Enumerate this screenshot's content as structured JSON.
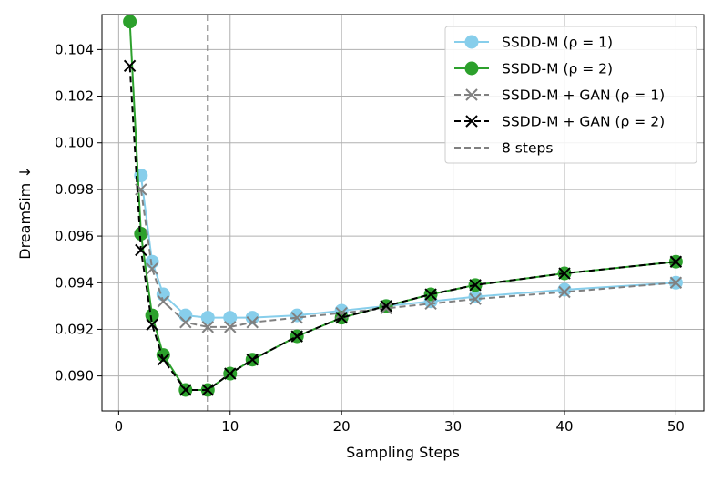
{
  "chart_data": {
    "type": "line",
    "title": "",
    "xlabel": "Sampling Steps",
    "ylabel": "DreamSim ↓",
    "xlim": [
      -1.5,
      52.5
    ],
    "ylim": [
      0.0885,
      0.1055
    ],
    "xticks": [
      0,
      10,
      20,
      30,
      40,
      50
    ],
    "yticks": [
      0.09,
      0.092,
      0.094,
      0.096,
      0.098,
      0.1,
      0.102,
      0.104
    ],
    "ytick_labels": [
      "0.090",
      "0.092",
      "0.094",
      "0.096",
      "0.098",
      "0.100",
      "0.102",
      "0.104"
    ],
    "grid": true,
    "legend_position": "top-right",
    "vertical_line": {
      "x": 8,
      "label": "8 steps",
      "color": "#808080",
      "style": "dashed"
    },
    "series": [
      {
        "name": "SSDD-M (ρ = 1)",
        "color": "#87ceeb",
        "marker": "circle",
        "linestyle": "solid",
        "x": [
          2,
          3,
          4,
          6,
          8,
          10,
          12,
          16,
          20,
          24,
          28,
          32,
          40,
          50
        ],
        "y": [
          0.0986,
          0.0949,
          0.0935,
          0.0926,
          0.0925,
          0.0925,
          0.0925,
          0.0926,
          0.0928,
          0.093,
          0.0932,
          0.0934,
          0.0937,
          0.094
        ]
      },
      {
        "name": "SSDD-M (ρ = 2)",
        "color": "#2ca02c",
        "marker": "circle",
        "linestyle": "solid",
        "x": [
          1,
          2,
          3,
          4,
          6,
          8,
          10,
          12,
          16,
          20,
          24,
          28,
          32,
          40,
          50
        ],
        "y": [
          0.1052,
          0.0961,
          0.0926,
          0.0909,
          0.0894,
          0.0894,
          0.0901,
          0.0907,
          0.0917,
          0.0925,
          0.093,
          0.0935,
          0.0939,
          0.0944,
          0.0949
        ]
      },
      {
        "name": "SSDD-M + GAN (ρ = 1)",
        "color": "#808080",
        "marker": "x",
        "linestyle": "dashed",
        "x": [
          2,
          3,
          4,
          6,
          8,
          10,
          12,
          16,
          20,
          24,
          28,
          32,
          40,
          50
        ],
        "y": [
          0.098,
          0.0946,
          0.0932,
          0.0923,
          0.0921,
          0.0921,
          0.0923,
          0.0925,
          0.0927,
          0.0929,
          0.0931,
          0.0933,
          0.0936,
          0.094
        ]
      },
      {
        "name": "SSDD-M + GAN (ρ = 2)",
        "color": "#000000",
        "marker": "x",
        "linestyle": "dashed",
        "x": [
          1,
          2,
          3,
          4,
          6,
          8,
          10,
          12,
          16,
          20,
          24,
          28,
          32,
          40,
          50
        ],
        "y": [
          0.1033,
          0.0954,
          0.0922,
          0.0907,
          0.0894,
          0.0894,
          0.0901,
          0.0907,
          0.0917,
          0.0925,
          0.093,
          0.0935,
          0.0939,
          0.0944,
          0.0949
        ]
      }
    ]
  }
}
